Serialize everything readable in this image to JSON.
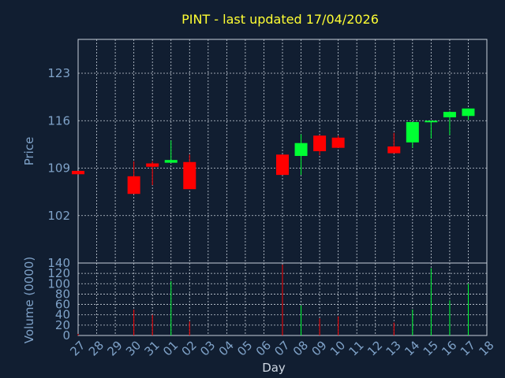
{
  "chart_data": [
    {
      "type": "candlestick",
      "title": "PINT - last updated 17/04/2026",
      "ylabel": "Price",
      "ylim": [
        95,
        128
      ],
      "yticks": [
        "102",
        "109",
        "116",
        "123"
      ],
      "grid": true,
      "up_color": "#00ff33",
      "down_color": "#ff0000",
      "x_categories": [
        "27",
        "28",
        "29",
        "30",
        "31",
        "01",
        "02",
        "03",
        "04",
        "05",
        "06",
        "07",
        "08",
        "09",
        "10",
        "11",
        "12",
        "13",
        "14",
        "15",
        "16",
        "17",
        "18"
      ],
      "candles": [
        {
          "x": "27",
          "open": 108.6,
          "close": 108.1,
          "high": 108.6,
          "low": 108.1
        },
        {
          "x": "30",
          "open": 107.8,
          "close": 105.2,
          "high": 110.0,
          "low": 105.2
        },
        {
          "x": "31",
          "open": 109.7,
          "close": 109.2,
          "high": 110.0,
          "low": 106.5
        },
        {
          "x": "01",
          "open": 109.8,
          "close": 110.2,
          "high": 113.1,
          "low": 109.8
        },
        {
          "x": "02",
          "open": 109.9,
          "close": 105.9,
          "high": 111.0,
          "low": 105.9
        },
        {
          "x": "07",
          "open": 111.0,
          "close": 108.0,
          "high": 111.0,
          "low": 108.0
        },
        {
          "x": "08",
          "open": 110.8,
          "close": 112.7,
          "high": 114.0,
          "low": 108.0
        },
        {
          "x": "09",
          "open": 113.8,
          "close": 111.5,
          "high": 113.9,
          "low": 110.9
        },
        {
          "x": "10",
          "open": 113.5,
          "close": 112.0,
          "high": 113.8,
          "low": 112.0
        },
        {
          "x": "13",
          "open": 112.2,
          "close": 111.2,
          "high": 114.2,
          "low": 111.2
        },
        {
          "x": "14",
          "open": 112.8,
          "close": 115.8,
          "high": 115.8,
          "low": 112.0
        },
        {
          "x": "15",
          "open": 115.8,
          "close": 116.0,
          "high": 116.0,
          "low": 113.4
        },
        {
          "x": "16",
          "open": 116.5,
          "close": 117.3,
          "high": 117.4,
          "low": 113.9
        },
        {
          "x": "17",
          "open": 116.7,
          "close": 117.8,
          "high": 117.8,
          "low": 116.1
        }
      ]
    },
    {
      "type": "bar",
      "ylabel": "Volume (0000)",
      "xlabel": "Day",
      "ylim": [
        0,
        140
      ],
      "yticks": [
        "0",
        "20",
        "40",
        "60",
        "80",
        "100",
        "120",
        "140"
      ],
      "categories": [
        "27",
        "28",
        "29",
        "30",
        "31",
        "01",
        "02",
        "03",
        "04",
        "05",
        "06",
        "07",
        "08",
        "09",
        "10",
        "11",
        "12",
        "13",
        "14",
        "15",
        "16",
        "17",
        "18"
      ],
      "volumes": [
        {
          "x": "27",
          "value": 3,
          "direction": "down"
        },
        {
          "x": "30",
          "value": 50,
          "direction": "down"
        },
        {
          "x": "31",
          "value": 40,
          "direction": "down"
        },
        {
          "x": "01",
          "value": 105,
          "direction": "up"
        },
        {
          "x": "02",
          "value": 27,
          "direction": "down"
        },
        {
          "x": "07",
          "value": 137,
          "direction": "down"
        },
        {
          "x": "08",
          "value": 58,
          "direction": "up"
        },
        {
          "x": "09",
          "value": 33,
          "direction": "down"
        },
        {
          "x": "10",
          "value": 37,
          "direction": "down"
        },
        {
          "x": "13",
          "value": 25,
          "direction": "down"
        },
        {
          "x": "14",
          "value": 50,
          "direction": "up"
        },
        {
          "x": "15",
          "value": 130,
          "direction": "up"
        },
        {
          "x": "16",
          "value": 68,
          "direction": "up"
        },
        {
          "x": "17",
          "value": 100,
          "direction": "up"
        }
      ]
    }
  ]
}
